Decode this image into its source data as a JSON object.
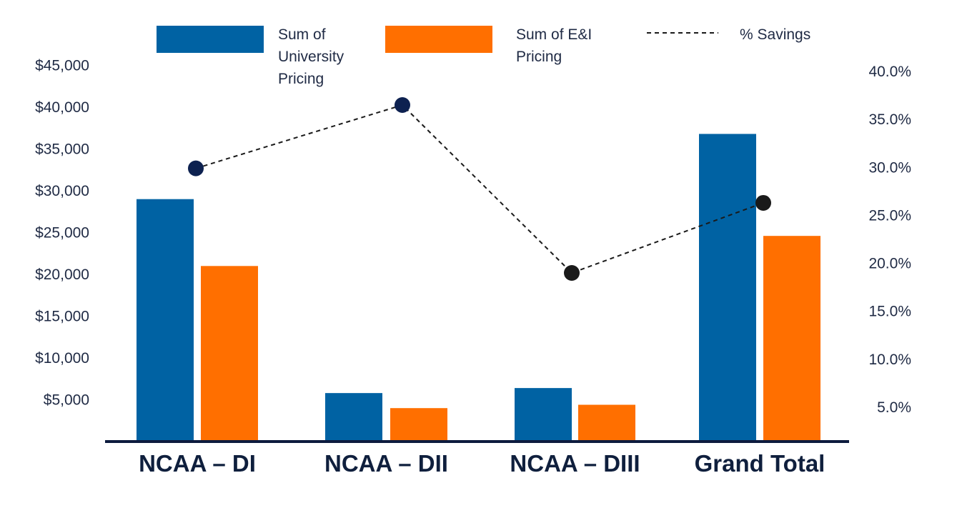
{
  "chart_data": {
    "type": "bar",
    "categories": [
      "NCAA – DI",
      "NCAA – DII",
      "NCAA – DIII",
      "Grand Total"
    ],
    "series": [
      {
        "name": "Sum of University Pricing",
        "legend_lines": [
          "Sum of",
          "University",
          "Pricing"
        ],
        "type": "bar",
        "axis": "left",
        "color": "#0062a3",
        "values": [
          29000,
          5800,
          6400,
          36800
        ]
      },
      {
        "name": "Sum of E&I Pricing",
        "legend_lines": [
          "Sum of E&I",
          "Pricing"
        ],
        "type": "bar",
        "axis": "left",
        "color": "#ff6f00",
        "values": [
          21000,
          4000,
          4400,
          24600
        ]
      },
      {
        "name": "% Savings",
        "legend_lines": [
          "% Savings"
        ],
        "type": "line",
        "axis": "right",
        "color": "#1a1a1a",
        "line_style": "dashed",
        "values": [
          29.9,
          36.5,
          19.0,
          26.3
        ]
      }
    ],
    "left_axis": {
      "ticks": [
        "$5,000",
        "$10,000",
        "$15,000",
        "$20,000",
        "$25,000",
        "$30,000",
        "$35,000",
        "$40,000",
        "$45,000"
      ],
      "tick_values": [
        5000,
        10000,
        15000,
        20000,
        25000,
        30000,
        35000,
        40000,
        45000
      ],
      "ylim": [
        0,
        45000
      ]
    },
    "right_axis": {
      "ticks": [
        "5.0%",
        "10.0%",
        "15.0%",
        "20.0%",
        "25.0%",
        "30.0%",
        "35.0%",
        "40.0%"
      ],
      "tick_values": [
        5,
        10,
        15,
        20,
        25,
        30,
        35,
        40
      ],
      "ylim": [
        0,
        40
      ]
    },
    "point_colors": [
      "#0d2150",
      "#0d2150",
      "#1a1a1a",
      "#1a1a1a"
    ],
    "axis_color": "#0d1b3e",
    "legend_position": "top",
    "grid": false,
    "title": "",
    "xlabel": "",
    "ylabel": ""
  }
}
